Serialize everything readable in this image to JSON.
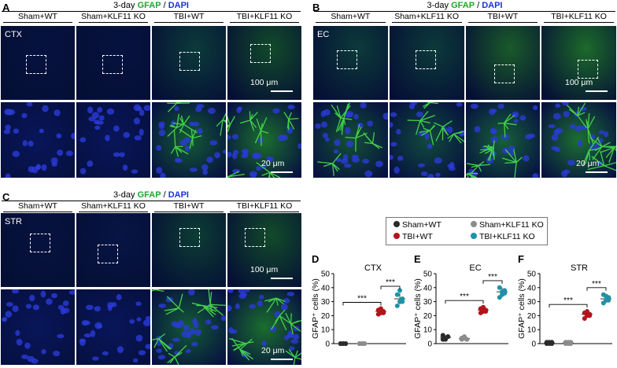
{
  "panels": [
    {
      "id": "A",
      "region": "CTX",
      "heading": {
        "pre": "3-day ",
        "gfap": "GFAP",
        "sep": " / ",
        "dapi": "DAPI"
      },
      "columns": [
        "Sham+WT",
        "Sham+KLF11 KO",
        "TBI+WT",
        "TBI+KLF11 KO"
      ],
      "scale_top": "100 μm",
      "scale_bottom": "20 μm"
    },
    {
      "id": "B",
      "region": "EC",
      "heading": {
        "pre": "3-day ",
        "gfap": "GFAP",
        "sep": " / ",
        "dapi": "DAPI"
      },
      "columns": [
        "Sham+WT",
        "Sham+KLF11 KO",
        "TBI+WT",
        "TBI+KLF11 KO"
      ],
      "scale_top": "100 μm",
      "scale_bottom": "20 μm"
    },
    {
      "id": "C",
      "region": "STR",
      "heading": {
        "pre": "3-day ",
        "gfap": "GFAP",
        "sep": " / ",
        "dapi": "DAPI"
      },
      "columns": [
        "Sham+WT",
        "Sham+KLF11 KO",
        "TBI+WT",
        "TBI+KLF11 KO"
      ],
      "scale_top": "100 μm",
      "scale_bottom": "20 μm"
    }
  ],
  "legend": [
    {
      "name": "Sham+WT",
      "color": "#2b2b2b"
    },
    {
      "name": "Sham+KLF11 KO",
      "color": "#8c8c8c"
    },
    {
      "name": "TBI+WT",
      "color": "#b3141c"
    },
    {
      "name": "TBI+KLF11 KO",
      "color": "#1f93a6"
    }
  ],
  "chart_data": [
    {
      "id": "D",
      "type": "scatter",
      "title": "CTX",
      "ylabel": "GFAP⁺ cells (%)",
      "ylim": [
        0,
        50
      ],
      "yticks": [
        0,
        10,
        20,
        30,
        40,
        50
      ],
      "groups": [
        "Sham+WT",
        "Sham+KLF11 KO",
        "TBI+WT",
        "TBI+KLF11 KO"
      ],
      "points": [
        [
          0,
          0,
          0,
          0,
          0,
          0
        ],
        [
          0,
          0,
          0,
          0,
          0,
          0
        ],
        [
          21,
          22,
          23,
          24,
          25,
          22
        ],
        [
          27,
          30,
          32,
          35,
          38,
          30
        ]
      ],
      "means": [
        0,
        0,
        23,
        32
      ],
      "sd": [
        0,
        0,
        1.5,
        4
      ],
      "comparisons": [
        {
          "from": 0,
          "to": 2,
          "label": "***"
        },
        {
          "from": 2,
          "to": 3,
          "label": "***"
        }
      ]
    },
    {
      "id": "E",
      "type": "scatter",
      "title": "EC",
      "ylabel": "GFAP⁺ cells (%)",
      "ylim": [
        0,
        50
      ],
      "yticks": [
        0,
        10,
        20,
        30,
        40,
        50
      ],
      "groups": [
        "Sham+WT",
        "Sham+KLF11 KO",
        "TBI+WT",
        "TBI+KLF11 KO"
      ],
      "points": [
        [
          3,
          4,
          5,
          6,
          3,
          5
        ],
        [
          3,
          4,
          3,
          4,
          5,
          3
        ],
        [
          22,
          23,
          24,
          25,
          26,
          23
        ],
        [
          33,
          35,
          38,
          40,
          37,
          36
        ]
      ],
      "means": [
        4.5,
        3.6,
        24,
        37
      ],
      "sd": [
        1.5,
        1,
        1.8,
        3
      ],
      "comparisons": [
        {
          "from": 0,
          "to": 2,
          "label": "***"
        },
        {
          "from": 2,
          "to": 3,
          "label": "***"
        }
      ]
    },
    {
      "id": "F",
      "type": "scatter",
      "title": "STR",
      "ylabel": "GFAP⁺ cells (%)",
      "ylim": [
        0,
        50
      ],
      "yticks": [
        0,
        10,
        20,
        30,
        40,
        50
      ],
      "groups": [
        "Sham+WT",
        "Sham+KLF11 KO",
        "TBI+WT",
        "TBI+KLF11 KO"
      ],
      "points": [
        [
          0,
          1,
          0,
          1,
          0,
          1
        ],
        [
          0,
          1,
          0,
          1,
          0,
          1
        ],
        [
          18,
          20,
          21,
          22,
          23,
          20
        ],
        [
          29,
          31,
          33,
          35,
          34,
          31
        ]
      ],
      "means": [
        0.5,
        0.5,
        21,
        32
      ],
      "sd": [
        0.5,
        0.5,
        2,
        3
      ],
      "comparisons": [
        {
          "from": 0,
          "to": 2,
          "label": "***"
        },
        {
          "from": 2,
          "to": 3,
          "label": "***"
        }
      ]
    }
  ]
}
